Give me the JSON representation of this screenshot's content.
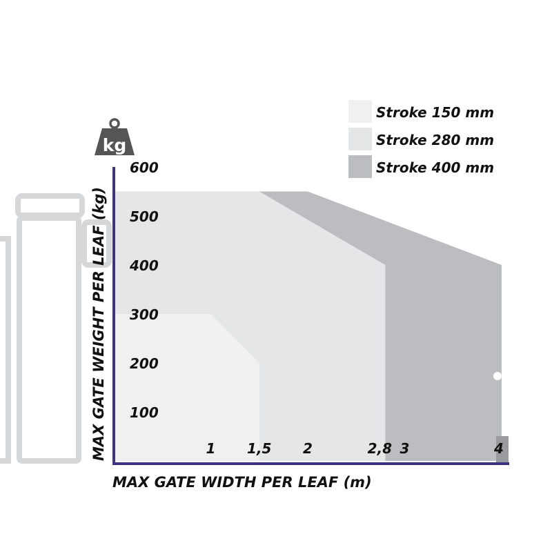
{
  "chart_data": {
    "type": "area",
    "title": "",
    "xlabel": "MAX GATE WIDTH PER LEAF (m)",
    "ylabel": "MAX GATE WEIGHT PER LEAF (kg)",
    "unit_icon_label": "kg",
    "xlim": [
      0,
      4
    ],
    "ylim": [
      0,
      600
    ],
    "x_ticks": [
      {
        "value": 1,
        "label": "1"
      },
      {
        "value": 1.5,
        "label": "1,5"
      },
      {
        "value": 2,
        "label": "2"
      },
      {
        "value": 2.8,
        "label": "2,8"
      },
      {
        "value": 3,
        "label": "3"
      },
      {
        "value": 4,
        "label": "4"
      }
    ],
    "y_ticks": [
      {
        "value": 100,
        "label": "100"
      },
      {
        "value": 200,
        "label": "200"
      },
      {
        "value": 300,
        "label": "300"
      },
      {
        "value": 400,
        "label": "400"
      },
      {
        "value": 500,
        "label": "500"
      },
      {
        "value": 600,
        "label": "600"
      }
    ],
    "grid": false,
    "legend_position": "top-right",
    "series": [
      {
        "name": "Stroke 400 mm",
        "color": "#bcbdc0",
        "points": [
          [
            0,
            550
          ],
          [
            2,
            550
          ],
          [
            4,
            400
          ],
          [
            4,
            0
          ]
        ]
      },
      {
        "name": "Stroke 280 mm",
        "color": "#e5e6e8",
        "points": [
          [
            0,
            550
          ],
          [
            1.5,
            550
          ],
          [
            2.8,
            400
          ],
          [
            2.8,
            0
          ]
        ]
      },
      {
        "name": "Stroke 150 mm",
        "color": "#f0f0f1",
        "points": [
          [
            0,
            300
          ],
          [
            1,
            300
          ],
          [
            1.5,
            200
          ],
          [
            1.5,
            0
          ]
        ]
      }
    ],
    "legend": [
      "Stroke 150 mm",
      "Stroke 280 mm",
      "Stroke 400 mm"
    ],
    "axis_color": "#3b3580"
  }
}
